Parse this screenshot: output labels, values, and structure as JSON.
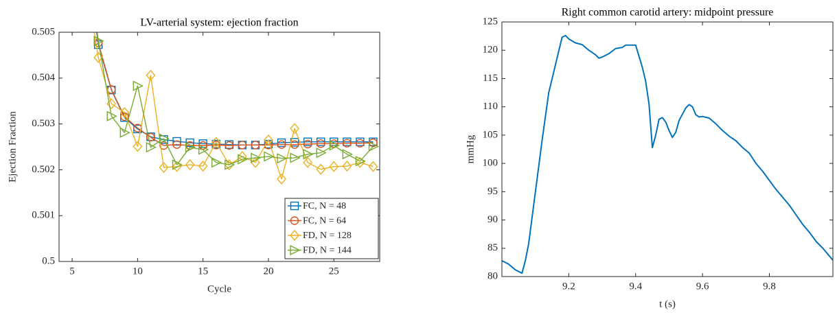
{
  "chart_data": [
    {
      "type": "line",
      "title": "LV-arterial system: ejection fraction",
      "xlabel": "Cycle",
      "ylabel": "Ejection Fraction",
      "x": [
        6,
        7,
        8,
        9,
        10,
        11,
        12,
        13,
        14,
        15,
        16,
        17,
        18,
        19,
        20,
        21,
        22,
        23,
        24,
        25,
        26,
        27,
        28
      ],
      "series": [
        {
          "name": "FC, N = 48",
          "color": "#0072bd",
          "marker": "square",
          "values": [
            0.5068,
            0.50473,
            0.50374,
            0.50314,
            0.50289,
            0.50272,
            0.50266,
            0.50262,
            0.50259,
            0.50257,
            0.50256,
            0.50255,
            0.50254,
            0.50254,
            0.50256,
            0.50259,
            0.5026,
            0.50261,
            0.50261,
            0.50261,
            0.50261,
            0.50261,
            0.50261
          ]
        },
        {
          "name": "FC, N = 64",
          "color": "#d95319",
          "marker": "circle",
          "values": [
            0.5068,
            0.50477,
            0.50375,
            0.50316,
            0.50291,
            0.50271,
            0.50253,
            0.50255,
            0.50253,
            0.50253,
            0.50254,
            0.50253,
            0.50254,
            0.50254,
            0.50254,
            0.50255,
            0.50255,
            0.50256,
            0.50257,
            0.50257,
            0.50258,
            0.50258,
            0.50259
          ]
        },
        {
          "name": "FD, N = 128",
          "color": "#edb120",
          "marker": "diamond",
          "values": [
            0.5062,
            0.50445,
            0.50344,
            0.50325,
            0.50251,
            0.50406,
            0.50205,
            0.50207,
            0.50211,
            0.50208,
            0.5026,
            0.50211,
            0.50229,
            0.50216,
            0.50265,
            0.5018,
            0.5029,
            0.50216,
            0.50201,
            0.50207,
            0.50208,
            0.50216,
            0.50207
          ]
        },
        {
          "name": "FD, N = 144",
          "color": "#77ac30",
          "marker": "triangle-right",
          "values": [
            0.507,
            0.50481,
            0.50317,
            0.50281,
            0.50383,
            0.50249,
            0.50268,
            0.50211,
            0.50249,
            0.50244,
            0.50216,
            0.50211,
            0.50223,
            0.50226,
            0.50229,
            0.50225,
            0.50226,
            0.50234,
            0.50237,
            0.50253,
            0.50234,
            0.50219,
            0.50251
          ]
        }
      ],
      "xlim": [
        4,
        28.5
      ],
      "xticks": [
        5,
        10,
        15,
        20,
        25
      ],
      "ylim": [
        0.5,
        0.505
      ],
      "yticks": [
        0.5,
        0.501,
        0.502,
        0.503,
        0.504,
        0.505
      ],
      "legend": "lower right"
    },
    {
      "type": "line",
      "title": "Right common carotid artery: midpoint pressure",
      "xlabel": "t (s)",
      "ylabel": "mmHg",
      "color": "#0072bd",
      "x": [
        9.0,
        9.02,
        9.04,
        9.06,
        9.07,
        9.08,
        9.1,
        9.12,
        9.14,
        9.16,
        9.18,
        9.19,
        9.2,
        9.22,
        9.24,
        9.26,
        9.28,
        9.29,
        9.3,
        9.32,
        9.34,
        9.36,
        9.37,
        9.4,
        9.42,
        9.43,
        9.44,
        9.45,
        9.46,
        9.47,
        9.48,
        9.49,
        9.5,
        9.51,
        9.52,
        9.53,
        9.55,
        9.56,
        9.57,
        9.58,
        9.59,
        9.6,
        9.62,
        9.64,
        9.66,
        9.68,
        9.7,
        9.72,
        9.74,
        9.76,
        9.78,
        9.8,
        9.82,
        9.84,
        9.86,
        9.88,
        9.9,
        9.92,
        9.94,
        9.96,
        9.98,
        9.99
      ],
      "values": [
        82.8,
        82.2,
        81.2,
        80.6,
        82.8,
        85.8,
        94.9,
        104,
        112.5,
        117.4,
        122.3,
        122.6,
        122,
        121.3,
        121,
        120,
        119.2,
        118.6,
        118.8,
        119.4,
        120.3,
        120.5,
        120.9,
        120.9,
        117,
        114.5,
        110.5,
        102.8,
        105,
        107.8,
        108.1,
        107.3,
        105.8,
        104.6,
        105.5,
        107.6,
        109.8,
        110.4,
        110,
        108.6,
        108.2,
        108.3,
        108,
        107,
        105.8,
        104.8,
        104,
        102.8,
        101.8,
        100,
        98.6,
        97,
        95.4,
        94,
        92.6,
        90.9,
        89.2,
        87.8,
        86.2,
        85,
        83.6,
        82.9
      ],
      "xlim": [
        9.0,
        9.99
      ],
      "xticks": [
        9.2,
        9.4,
        9.6,
        9.8
      ],
      "ylim": [
        80,
        125
      ],
      "yticks": [
        80,
        85,
        90,
        95,
        100,
        105,
        110,
        115,
        120,
        125
      ]
    }
  ]
}
